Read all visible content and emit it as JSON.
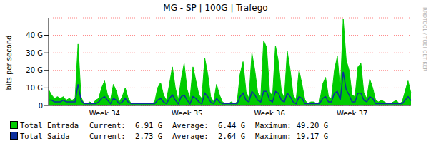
{
  "chart_data": {
    "type": "area",
    "title": "MG - SP | 100G | Trafego",
    "y_label": "bits per second",
    "watermark": "RRDTOOL / TOBI OETIKER",
    "grid": true,
    "legend": "bottom",
    "ylim": [
      0,
      50
    ],
    "yticks": [
      0,
      {
        "value": 10,
        "label": "10 G"
      },
      {
        "value": 20,
        "label": "20 G"
      },
      {
        "value": 30,
        "label": "30 G"
      },
      {
        "value": 40,
        "label": "40 G"
      }
    ],
    "stat_names": [
      "Current:",
      "Average:",
      "Maximum:"
    ],
    "categories": [
      null,
      null,
      null,
      null,
      null,
      null,
      null,
      null,
      null,
      null,
      null,
      null,
      null,
      null,
      null,
      null,
      null,
      null,
      null,
      "Week 34",
      null,
      null,
      null,
      null,
      null,
      null,
      null,
      null,
      null,
      null,
      null,
      null,
      null,
      null,
      null,
      null,
      null,
      null,
      null,
      null,
      null,
      null,
      null,
      null,
      null,
      null,
      null,
      "Week 35",
      null,
      null,
      null,
      null,
      null,
      null,
      null,
      null,
      null,
      null,
      null,
      null,
      null,
      null,
      null,
      null,
      null,
      null,
      null,
      null,
      null,
      null,
      null,
      null,
      null,
      null,
      null,
      "Week 36",
      null,
      null,
      null,
      null,
      null,
      null,
      null,
      null,
      null,
      null,
      null,
      null,
      null,
      null,
      null,
      null,
      null,
      null,
      null,
      null,
      null,
      null,
      null,
      null,
      null,
      null,
      null,
      "Week 37",
      null,
      null,
      null,
      null,
      null,
      null,
      null,
      null,
      null,
      null,
      null,
      null,
      null,
      null,
      null,
      null,
      null,
      null,
      null,
      null
    ],
    "series": [
      {
        "name": "Total Entrada",
        "type": "area",
        "color": "#00cc00",
        "stats": [
          6.91,
          6.44,
          49.2
        ],
        "stats_labels": [
          "6.91 G",
          "6.44 G",
          "49.20 G"
        ],
        "values": [
          9,
          6,
          4,
          5,
          4,
          5,
          3,
          4,
          3,
          4,
          35,
          5,
          1,
          1,
          2,
          1,
          3,
          4,
          10,
          14,
          6,
          3,
          12,
          8,
          2,
          5,
          10,
          4,
          1,
          1,
          1,
          1,
          1,
          1,
          1,
          1,
          2,
          10,
          13,
          6,
          3,
          12,
          22,
          10,
          3,
          15,
          24,
          9,
          4,
          22,
          14,
          6,
          4,
          27,
          18,
          5,
          2,
          12,
          6,
          2,
          1,
          1,
          2,
          1,
          2,
          18,
          25,
          8,
          4,
          30,
          20,
          7,
          5,
          37,
          33,
          8,
          5,
          34,
          25,
          8,
          4,
          31,
          20,
          6,
          3,
          20,
          12,
          3,
          1,
          2,
          2,
          1,
          2,
          12,
          16,
          5,
          4,
          20,
          28,
          8,
          49.2,
          26,
          20,
          6,
          5,
          22,
          24,
          7,
          4,
          15,
          10,
          3,
          2,
          3,
          2,
          1,
          1,
          2,
          3,
          1,
          2,
          8,
          14,
          6.91
        ]
      },
      {
        "name": "Total Saida",
        "type": "line",
        "color": "#0c2f9c",
        "stats": [
          2.73,
          2.64,
          19.17
        ],
        "stats_labels": [
          "2.73 G",
          "2.64 G",
          "19.17 G"
        ],
        "values": [
          3,
          3,
          2,
          2,
          2,
          3,
          2,
          2,
          2,
          2,
          12,
          3,
          1,
          1,
          1,
          1,
          1,
          2,
          4,
          5,
          3,
          1,
          4,
          3,
          1,
          2,
          4,
          2,
          1,
          1,
          1,
          1,
          1,
          1,
          1,
          1,
          1,
          3,
          4,
          2,
          1,
          4,
          6,
          3,
          1,
          5,
          6,
          3,
          1,
          5,
          4,
          2,
          1,
          7,
          5,
          2,
          1,
          4,
          2,
          1,
          1,
          1,
          1,
          1,
          1,
          5,
          7,
          3,
          2,
          8,
          6,
          3,
          2,
          8,
          8,
          3,
          2,
          8,
          7,
          3,
          2,
          7,
          5,
          2,
          1,
          5,
          4,
          1,
          1,
          1,
          1,
          1,
          1,
          4,
          5,
          2,
          2,
          7,
          8,
          3,
          19.17,
          9,
          6,
          2,
          2,
          7,
          7,
          3,
          2,
          5,
          4,
          1,
          1,
          1,
          1,
          1,
          1,
          1,
          1,
          1,
          1,
          3,
          5,
          2.73
        ]
      }
    ]
  }
}
